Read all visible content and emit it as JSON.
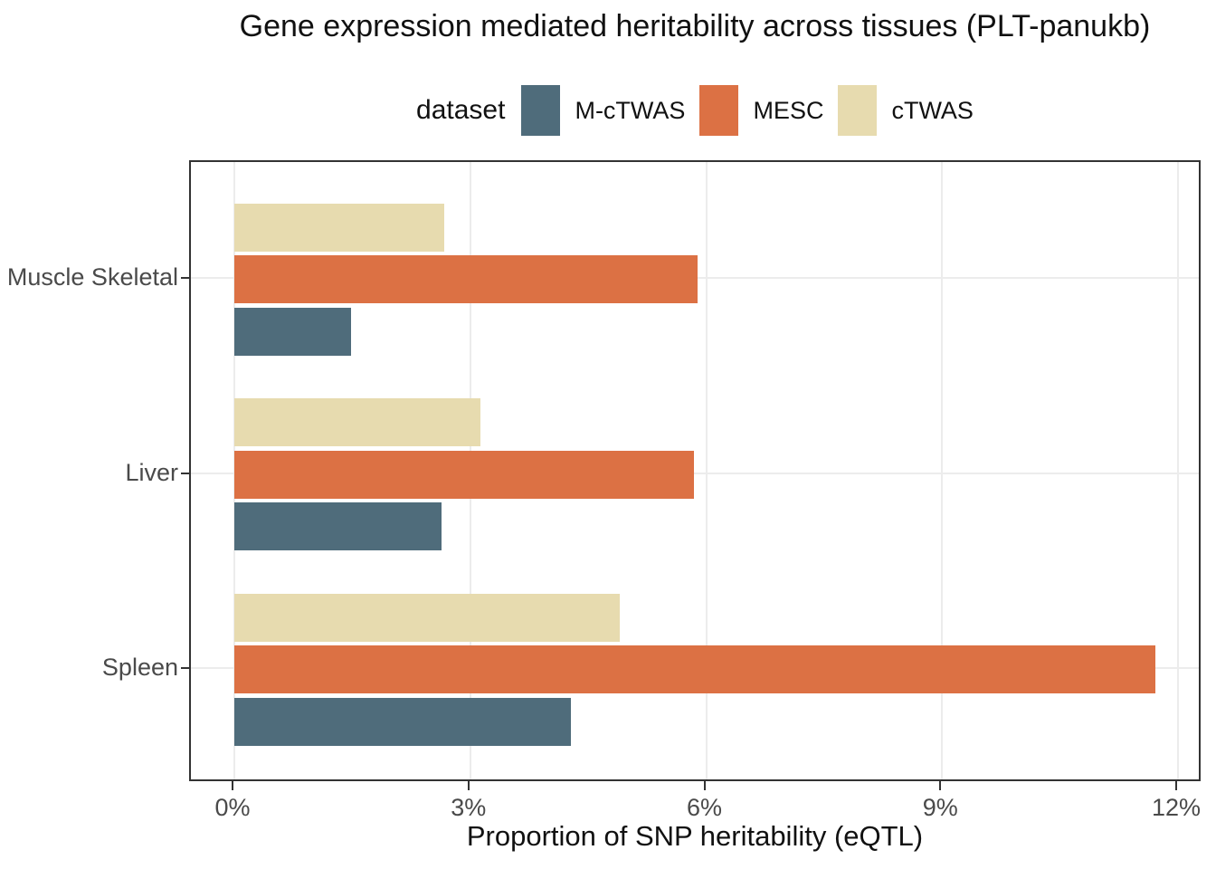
{
  "title": "Gene expression mediated heritability across tissues (PLT-panukb)",
  "legend": {
    "title": "dataset",
    "items": [
      {
        "label": "M-cTWAS",
        "color": "#4F6C7B"
      },
      {
        "label": "MESC",
        "color": "#DC7144"
      },
      {
        "label": "cTWAS",
        "color": "#E7DBAF"
      }
    ]
  },
  "chart_data": {
    "type": "bar",
    "orientation": "horizontal",
    "title": "Gene expression mediated heritability across tissues (PLT-panukb)",
    "xlabel": "Proportion of SNP heritability (eQTL)",
    "ylabel": "",
    "categories": [
      "Muscle Skeletal",
      "Liver",
      "Spleen"
    ],
    "series": [
      {
        "name": "M-cTWAS",
        "color": "#4F6C7B",
        "values": [
          1.48,
          2.63,
          4.28
        ]
      },
      {
        "name": "MESC",
        "color": "#DC7144",
        "values": [
          5.89,
          5.85,
          11.71
        ]
      },
      {
        "name": "cTWAS",
        "color": "#E7DBAF",
        "values": [
          2.67,
          3.13,
          4.9
        ]
      }
    ],
    "bar_order_top_to_bottom": [
      "cTWAS",
      "MESC",
      "M-cTWAS"
    ],
    "x_ticks": [
      0,
      3,
      6,
      9,
      12
    ],
    "x_tick_labels": [
      "0%",
      "3%",
      "6%",
      "9%",
      "12%"
    ],
    "xlim": [
      0,
      12.3
    ],
    "grid": "major-only",
    "legend_position": "top",
    "values_unit": "percent"
  },
  "colors": {
    "panel_border": "#333333",
    "grid": "#ececec",
    "axis_text": "#4a4a4a",
    "title_text": "#111111",
    "background": "#ffffff"
  }
}
